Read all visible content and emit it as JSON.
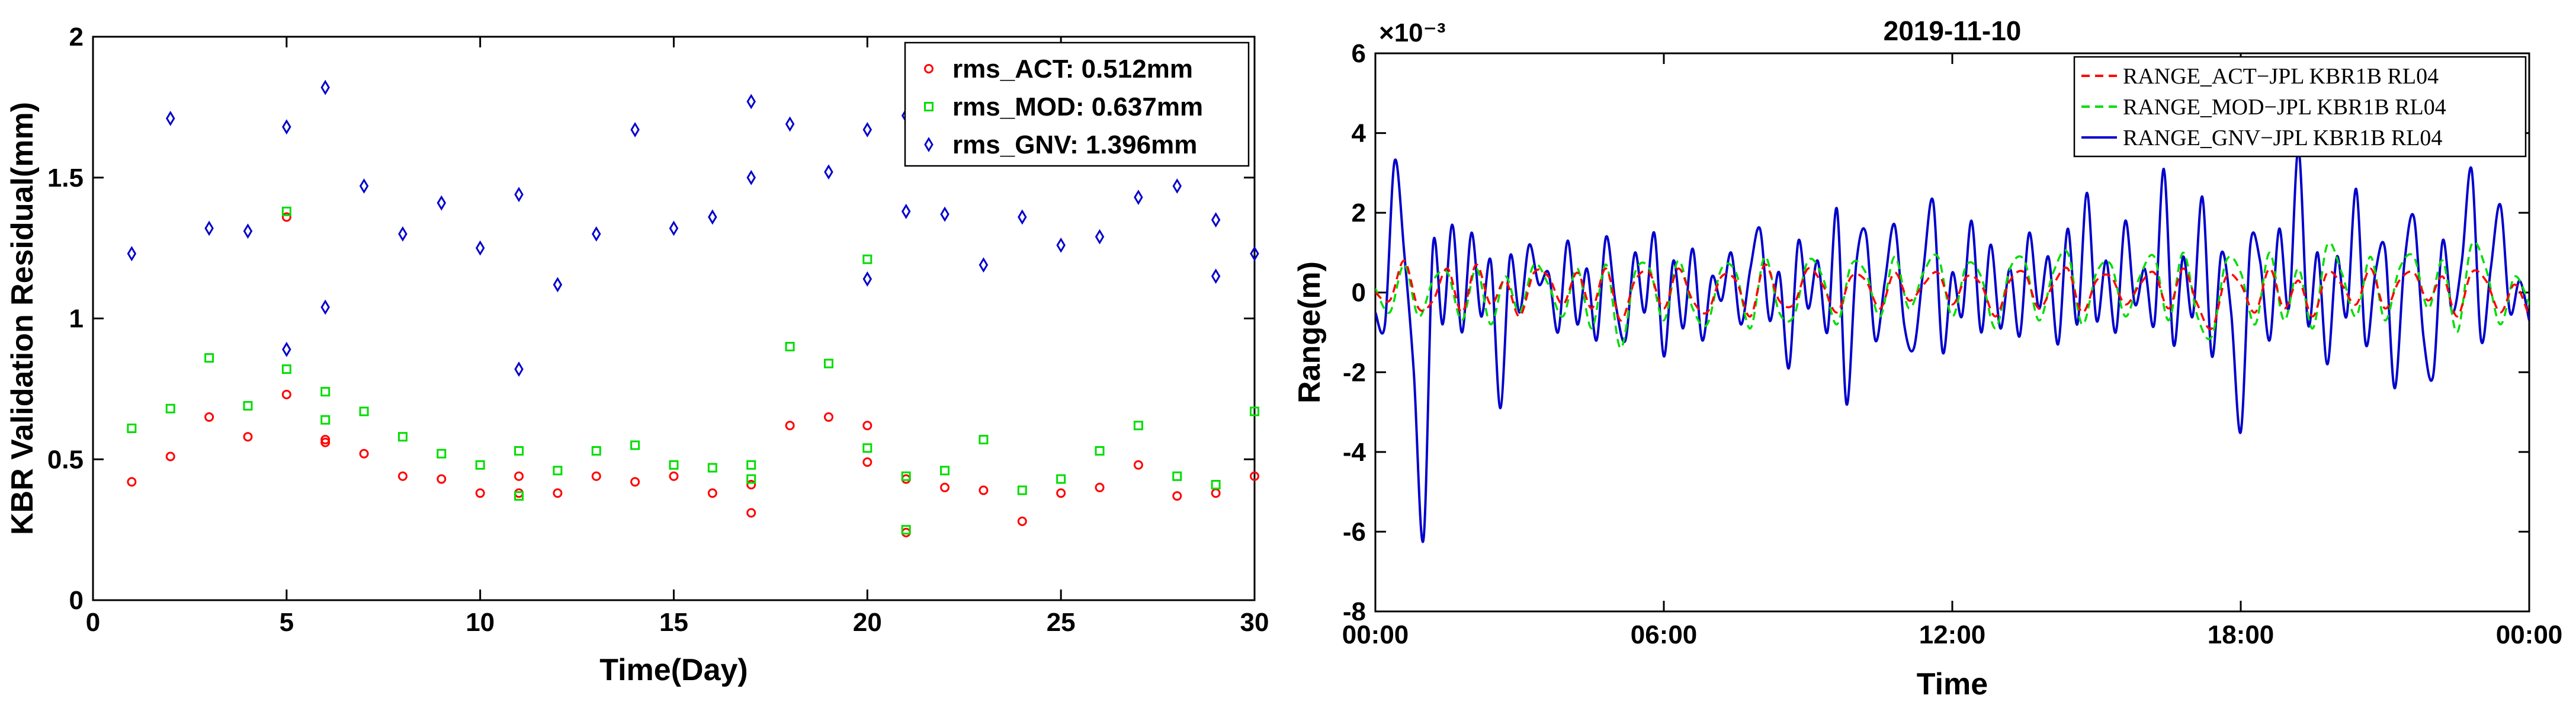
{
  "chart_data": [
    {
      "type": "scatter",
      "title": "",
      "xlabel": "Time(Day)",
      "ylabel": "KBR Validation Residual(mm)",
      "xlim": [
        0,
        30
      ],
      "ylim": [
        0,
        2
      ],
      "xticks": [
        "0",
        "5",
        "10",
        "15",
        "20",
        "25",
        "30"
      ],
      "yticks": [
        "0",
        "0.5",
        "1",
        "1.5",
        "2"
      ],
      "grid": false,
      "legend_position": "top-right",
      "series": [
        {
          "name": "rms_ACT: 0.512mm",
          "color": "#ff0000",
          "marker": "circle",
          "points": [
            [
              1,
              0.42
            ],
            [
              2,
              0.51
            ],
            [
              3,
              0.65
            ],
            [
              4,
              0.58
            ],
            [
              5,
              0.73
            ],
            [
              5,
              1.36
            ],
            [
              6,
              0.57
            ],
            [
              6,
              0.56
            ],
            [
              7,
              0.52
            ],
            [
              8,
              0.44
            ],
            [
              9,
              0.43
            ],
            [
              10,
              0.38
            ],
            [
              11,
              0.44
            ],
            [
              11,
              0.38
            ],
            [
              12,
              0.38
            ],
            [
              13,
              0.44
            ],
            [
              14,
              0.42
            ],
            [
              15,
              0.44
            ],
            [
              16,
              0.38
            ],
            [
              17,
              0.41
            ],
            [
              17,
              0.31
            ],
            [
              18,
              0.62
            ],
            [
              19,
              0.65
            ],
            [
              20,
              0.62
            ],
            [
              20,
              0.49
            ],
            [
              21,
              0.43
            ],
            [
              21,
              0.24
            ],
            [
              22,
              0.4
            ],
            [
              23,
              0.39
            ],
            [
              24,
              0.28
            ],
            [
              25,
              0.38
            ],
            [
              26,
              0.4
            ],
            [
              27,
              0.48
            ],
            [
              28,
              0.37
            ],
            [
              29,
              0.38
            ],
            [
              30,
              0.44
            ]
          ]
        },
        {
          "name": "rms_MOD: 0.637mm",
          "color": "#00dd00",
          "marker": "square",
          "points": [
            [
              1,
              0.61
            ],
            [
              2,
              0.68
            ],
            [
              3,
              0.86
            ],
            [
              4,
              0.69
            ],
            [
              5,
              0.82
            ],
            [
              5,
              1.38
            ],
            [
              6,
              0.74
            ],
            [
              6,
              0.64
            ],
            [
              7,
              0.67
            ],
            [
              8,
              0.58
            ],
            [
              9,
              0.52
            ],
            [
              10,
              0.48
            ],
            [
              11,
              0.53
            ],
            [
              11,
              0.37
            ],
            [
              12,
              0.46
            ],
            [
              13,
              0.53
            ],
            [
              14,
              0.55
            ],
            [
              15,
              0.48
            ],
            [
              16,
              0.47
            ],
            [
              17,
              0.48
            ],
            [
              17,
              0.43
            ],
            [
              18,
              0.9
            ],
            [
              19,
              0.84
            ],
            [
              20,
              1.21
            ],
            [
              20,
              0.54
            ],
            [
              21,
              0.44
            ],
            [
              21,
              0.25
            ],
            [
              22,
              0.46
            ],
            [
              23,
              0.57
            ],
            [
              24,
              0.39
            ],
            [
              25,
              0.43
            ],
            [
              26,
              0.53
            ],
            [
              27,
              0.62
            ],
            [
              28,
              0.44
            ],
            [
              29,
              0.41
            ],
            [
              30,
              0.67
            ]
          ]
        },
        {
          "name": "rms_GNV: 1.396mm",
          "color": "#0000cc",
          "marker": "diamond",
          "points": [
            [
              1,
              1.23
            ],
            [
              2,
              1.71
            ],
            [
              3,
              1.32
            ],
            [
              4,
              1.31
            ],
            [
              5,
              1.68
            ],
            [
              5,
              0.89
            ],
            [
              6,
              1.82
            ],
            [
              6,
              1.04
            ],
            [
              7,
              1.47
            ],
            [
              8,
              1.3
            ],
            [
              9,
              1.41
            ],
            [
              10,
              1.25
            ],
            [
              11,
              1.44
            ],
            [
              11,
              0.82
            ],
            [
              12,
              1.12
            ],
            [
              13,
              1.3
            ],
            [
              14,
              1.67
            ],
            [
              15,
              1.32
            ],
            [
              16,
              1.36
            ],
            [
              17,
              1.77
            ],
            [
              17,
              1.5
            ],
            [
              18,
              1.69
            ],
            [
              19,
              1.52
            ],
            [
              20,
              1.67
            ],
            [
              20,
              1.14
            ],
            [
              21,
              1.38
            ],
            [
              21,
              1.72
            ],
            [
              22,
              1.37
            ],
            [
              23,
              1.19
            ],
            [
              24,
              1.36
            ],
            [
              25,
              1.26
            ],
            [
              26,
              1.29
            ],
            [
              27,
              1.43
            ],
            [
              28,
              1.47
            ],
            [
              29,
              1.35
            ],
            [
              29,
              1.15
            ],
            [
              30,
              1.23
            ]
          ]
        }
      ]
    },
    {
      "type": "line",
      "title": "2019-11-10",
      "xlabel": "Time",
      "ylabel": "Range(m)",
      "y_exponent": "×10⁻³",
      "x_unit": "hours",
      "xlim": [
        0,
        24
      ],
      "ylim": [
        -8,
        6
      ],
      "xticks": [
        "00:00",
        "06:00",
        "12:00",
        "18:00",
        "00:00"
      ],
      "yticks": [
        "-8",
        "-6",
        "-4",
        "-2",
        "0",
        "2",
        "4",
        "6"
      ],
      "grid": false,
      "legend_position": "top-right",
      "series": [
        {
          "name": "RANGE_ACT−JPL KBR1B RL04",
          "color": "#ff0000",
          "style": "dashed",
          "x": [
            0.0,
            0.3,
            0.6,
            0.9,
            1.2,
            1.5,
            1.8,
            2.1,
            2.4,
            2.7,
            3.0,
            3.3,
            3.6,
            3.9,
            4.2,
            4.5,
            4.8,
            5.1,
            5.4,
            5.7,
            6.0,
            6.3,
            6.6,
            6.9,
            7.2,
            7.5,
            7.8,
            8.1,
            8.4,
            8.7,
            9.0,
            9.3,
            9.6,
            9.9,
            10.2,
            10.5,
            10.8,
            11.1,
            11.4,
            11.7,
            12.0,
            12.3,
            12.6,
            12.9,
            13.2,
            13.5,
            13.8,
            14.1,
            14.4,
            14.7,
            15.0,
            15.3,
            15.6,
            15.9,
            16.2,
            16.5,
            16.8,
            17.1,
            17.4,
            17.7,
            18.0,
            18.3,
            18.6,
            18.9,
            19.2,
            19.5,
            19.8,
            20.1,
            20.4,
            20.7,
            21.0,
            21.3,
            21.6,
            21.9,
            22.2,
            22.5,
            22.8,
            23.1,
            23.4,
            23.7,
            24.0
          ],
          "y": [
            0.0,
            -0.2,
            0.8,
            -0.4,
            -0.2,
            0.6,
            -0.5,
            0.7,
            -0.3,
            0.3,
            -0.6,
            0.5,
            0.4,
            -0.3,
            0.5,
            -0.4,
            0.6,
            -0.7,
            0.3,
            0.5,
            -0.4,
            0.6,
            -0.2,
            -0.5,
            0.4,
            0.3,
            -0.6,
            0.7,
            -0.2,
            -0.3,
            0.6,
            0.2,
            -0.5,
            0.4,
            0.3,
            -0.4,
            0.5,
            -0.2,
            0.2,
            0.5,
            -0.3,
            0.4,
            0.2,
            -0.6,
            0.3,
            0.5,
            -0.4,
            0.2,
            0.6,
            -0.5,
            0.3,
            0.4,
            -0.3,
            0.2,
            0.5,
            -0.4,
            0.6,
            -0.3,
            -0.9,
            0.4,
            0.2,
            -0.5,
            0.6,
            -0.4,
            0.3,
            -0.6,
            0.5,
            0.2,
            -0.3,
            0.6,
            -0.4,
            0.3,
            0.5,
            -0.2,
            0.4,
            -0.6,
            0.5,
            0.3,
            -0.5,
            0.2,
            -0.6
          ]
        },
        {
          "name": "RANGE_MOD−JPL KBR1B RL04",
          "color": "#00dd00",
          "style": "dashed",
          "x": [
            0.0,
            0.3,
            0.6,
            0.9,
            1.2,
            1.5,
            1.8,
            2.1,
            2.4,
            2.7,
            3.0,
            3.3,
            3.6,
            3.9,
            4.2,
            4.5,
            4.8,
            5.1,
            5.4,
            5.7,
            6.0,
            6.3,
            6.6,
            6.9,
            7.2,
            7.5,
            7.8,
            8.1,
            8.4,
            8.7,
            9.0,
            9.3,
            9.6,
            9.9,
            10.2,
            10.5,
            10.8,
            11.1,
            11.4,
            11.7,
            12.0,
            12.3,
            12.6,
            12.9,
            13.2,
            13.5,
            13.8,
            14.1,
            14.4,
            14.7,
            15.0,
            15.3,
            15.6,
            15.9,
            16.2,
            16.5,
            16.8,
            17.1,
            17.4,
            17.7,
            18.0,
            18.3,
            18.6,
            18.9,
            19.2,
            19.5,
            19.8,
            20.1,
            20.4,
            20.7,
            21.0,
            21.3,
            21.6,
            21.9,
            22.2,
            22.5,
            22.8,
            23.1,
            23.4,
            23.7,
            24.0
          ],
          "y": [
            0.1,
            -0.5,
            0.7,
            -0.6,
            0.3,
            0.5,
            -0.7,
            0.6,
            -0.8,
            0.4,
            -0.5,
            0.7,
            0.2,
            -0.6,
            0.6,
            -0.9,
            0.7,
            -1.4,
            0.5,
            0.6,
            -0.7,
            0.8,
            -0.4,
            -0.8,
            0.6,
            0.5,
            -0.9,
            0.9,
            -0.5,
            -0.6,
            0.8,
            0.4,
            -0.8,
            0.7,
            0.5,
            -0.6,
            0.9,
            -0.4,
            0.5,
            0.9,
            -0.6,
            0.7,
            0.4,
            -0.9,
            0.6,
            0.8,
            -0.7,
            0.5,
            1.0,
            -0.8,
            0.5,
            0.7,
            -0.6,
            0.4,
            0.9,
            -0.7,
            1.0,
            -0.6,
            -1.1,
            0.8,
            0.5,
            -0.8,
            1.0,
            -0.7,
            0.6,
            -0.9,
            1.2,
            0.5,
            -0.6,
            0.9,
            -0.7,
            0.6,
            0.9,
            -0.4,
            0.8,
            -1.0,
            1.2,
            0.6,
            -0.8,
            0.4,
            -0.3
          ]
        },
        {
          "name": "RANGE_GNV−JPL KBR1B RL04",
          "color": "#0000cc",
          "style": "solid",
          "x": [
            0.0,
            0.2,
            0.4,
            0.6,
            0.8,
            1.0,
            1.2,
            1.4,
            1.6,
            1.8,
            2.0,
            2.2,
            2.4,
            2.6,
            2.8,
            3.0,
            3.2,
            3.4,
            3.6,
            3.8,
            4.0,
            4.2,
            4.4,
            4.6,
            4.8,
            5.0,
            5.2,
            5.4,
            5.6,
            5.8,
            6.0,
            6.2,
            6.4,
            6.6,
            6.8,
            7.0,
            7.2,
            7.4,
            7.6,
            7.8,
            8.0,
            8.2,
            8.4,
            8.6,
            8.8,
            9.0,
            9.2,
            9.4,
            9.6,
            9.8,
            10.0,
            10.2,
            10.4,
            10.6,
            10.8,
            11.0,
            11.2,
            11.4,
            11.6,
            11.8,
            12.0,
            12.2,
            12.4,
            12.6,
            12.8,
            13.0,
            13.2,
            13.4,
            13.6,
            13.8,
            14.0,
            14.2,
            14.4,
            14.6,
            14.8,
            15.0,
            15.2,
            15.4,
            15.6,
            15.8,
            16.0,
            16.2,
            16.4,
            16.6,
            16.8,
            17.0,
            17.2,
            17.4,
            17.6,
            17.8,
            18.0,
            18.2,
            18.4,
            18.6,
            18.8,
            19.0,
            19.2,
            19.4,
            19.6,
            19.8,
            20.0,
            20.2,
            20.4,
            20.6,
            20.8,
            21.0,
            21.2,
            21.4,
            21.6,
            21.8,
            22.0,
            22.2,
            22.4,
            22.6,
            22.8,
            23.0,
            23.2,
            23.4,
            23.6,
            23.8,
            24.0
          ],
          "y": [
            -0.5,
            -0.8,
            3.3,
            1.0,
            -2.0,
            -6.2,
            1.2,
            -0.8,
            1.7,
            -1.0,
            1.5,
            -0.6,
            0.8,
            -2.9,
            0.9,
            -0.5,
            1.2,
            0.2,
            0.5,
            -1.0,
            1.3,
            -0.8,
            0.6,
            -1.2,
            1.4,
            -0.3,
            -1.2,
            1.0,
            -0.5,
            1.5,
            -1.6,
            0.8,
            -0.9,
            1.1,
            -1.2,
            0.4,
            -0.2,
            1.0,
            -0.8,
            0.6,
            1.6,
            -0.7,
            0.5,
            -1.9,
            1.3,
            -0.4,
            0.8,
            -1.0,
            2.1,
            -2.8,
            0.7,
            1.5,
            -1.2,
            0.3,
            1.7,
            -0.8,
            -1.4,
            0.6,
            2.3,
            -1.5,
            0.5,
            -0.6,
            1.8,
            -1.0,
            1.2,
            -0.9,
            0.6,
            -1.1,
            1.5,
            -0.4,
            0.9,
            -1.3,
            1.6,
            -0.8,
            2.5,
            -0.7,
            0.8,
            -1.0,
            1.8,
            -0.3,
            0.6,
            -0.8,
            3.1,
            -1.3,
            0.9,
            -0.6,
            2.4,
            -1.6,
            1.0,
            -0.5,
            -3.5,
            1.2,
            0.8,
            -1.2,
            1.6,
            -0.4,
            3.6,
            -0.8,
            1.0,
            -1.8,
            0.9,
            -0.6,
            2.6,
            -1.3,
            0.5,
            1.1,
            -2.4,
            0.7,
            1.9,
            -1.1,
            -2.1,
            1.3,
            -0.5,
            0.8,
            3.1,
            -1.2,
            0.6,
            2.2,
            -0.5,
            0.3,
            -0.7
          ]
        }
      ]
    }
  ]
}
